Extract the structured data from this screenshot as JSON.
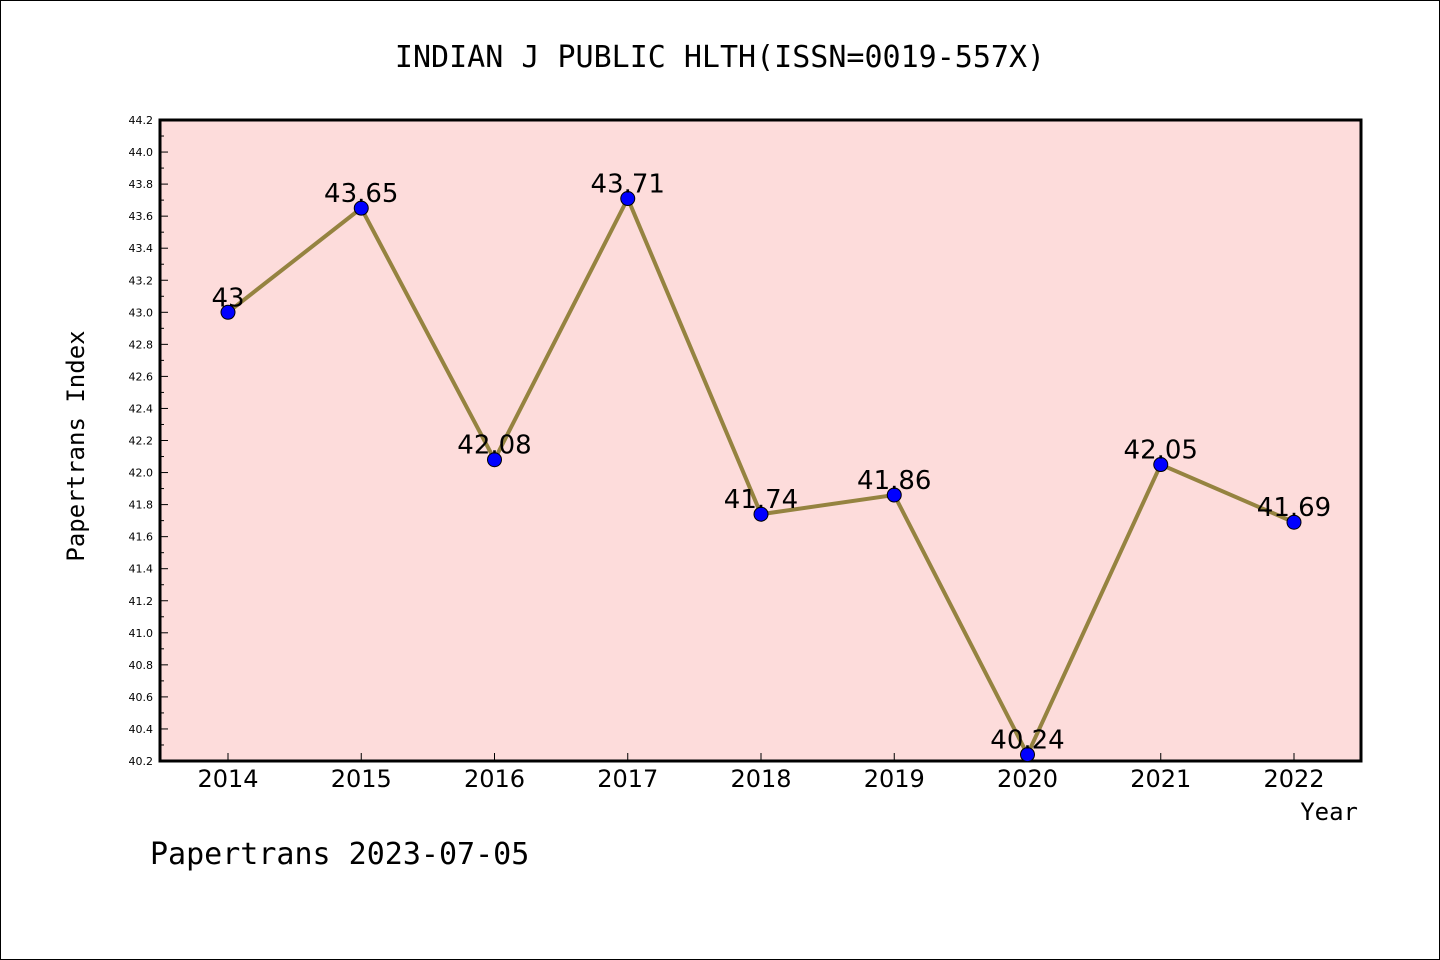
{
  "chart_data": {
    "type": "line",
    "title": "INDIAN J PUBLIC HLTH(ISSN=0019-557X)",
    "xlabel": "Year",
    "ylabel": "Papertrans Index",
    "categories": [
      "2014",
      "2015",
      "2016",
      "2017",
      "2018",
      "2019",
      "2020",
      "2021",
      "2022"
    ],
    "series": [
      {
        "values": [
          43,
          43.65,
          42.08,
          43.71,
          41.74,
          41.86,
          40.24,
          42.05,
          41.69
        ],
        "labels": [
          "43",
          "43.65",
          "42.08",
          "43.71",
          "41.74",
          "41.86",
          "40.24",
          "42.05",
          "41.69"
        ]
      }
    ],
    "ylim": [
      40.2,
      44.2
    ],
    "yticks": [
      "40.2",
      "40.4",
      "40.6",
      "40.8",
      "41.0",
      "41.2",
      "41.4",
      "41.6",
      "41.8",
      "42.0",
      "42.2",
      "42.4",
      "42.6",
      "42.8",
      "43.0",
      "43.2",
      "43.4",
      "43.6",
      "43.8",
      "44.0",
      "44.2"
    ],
    "grid": false,
    "colors": {
      "plot_background": "#fddcdb",
      "line": "#958340",
      "marker": "#0000ff"
    }
  },
  "footer": "Papertrans 2023-07-05"
}
